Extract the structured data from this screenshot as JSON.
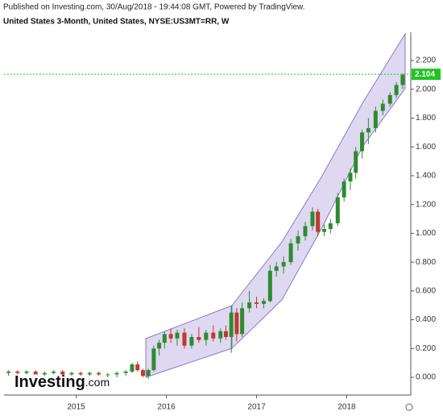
{
  "header": {
    "published": "Published on Investing.com, 30/Aug/2018 - 19:44:08 GMT, Powered by TradingView.",
    "symbol": "United States 3-Month, United States, NYSE:US3MT=RR, W"
  },
  "logo": {
    "brand": "Investing",
    "suffix": ".com"
  },
  "chart_data": {
    "type": "candlestick",
    "up_color": "#2e8b2e",
    "down_color": "#c0392b",
    "x": [
      2014.25,
      2014.35,
      2014.45,
      2014.55,
      2014.65,
      2014.75,
      2014.85,
      2014.95,
      2015.05,
      2015.15,
      2015.25,
      2015.35,
      2015.45,
      2015.55,
      2015.62,
      2015.68,
      2015.74,
      2015.8,
      2015.86,
      2015.92,
      2015.98,
      2016.05,
      2016.12,
      2016.2,
      2016.28,
      2016.36,
      2016.44,
      2016.52,
      2016.6,
      2016.66,
      2016.72,
      2016.78,
      2016.84,
      2016.92,
      2017.0,
      2017.08,
      2017.15,
      2017.22,
      2017.3,
      2017.38,
      2017.46,
      2017.54,
      2017.62,
      2017.68,
      2017.75,
      2017.82,
      2017.9,
      2017.97,
      2018.04,
      2018.1,
      2018.17,
      2018.24,
      2018.32,
      2018.4,
      2018.48,
      2018.55,
      2018.62
    ],
    "open": [
      0.03,
      0.04,
      0.03,
      0.04,
      0.02,
      0.03,
      0.04,
      0.02,
      0.03,
      0.02,
      0.03,
      0.02,
      0.02,
      0.03,
      0.04,
      0.09,
      0.05,
      0.01,
      0.05,
      0.2,
      0.24,
      0.3,
      0.27,
      0.31,
      0.22,
      0.28,
      0.26,
      0.31,
      0.27,
      0.32,
      0.28,
      0.45,
      0.3,
      0.48,
      0.52,
      0.51,
      0.53,
      0.74,
      0.77,
      0.8,
      0.93,
      0.98,
      1.05,
      1.15,
      1.01,
      1.03,
      1.07,
      1.25,
      1.36,
      1.42,
      1.57,
      1.7,
      1.73,
      1.85,
      1.9,
      1.96,
      2.03
    ],
    "high": [
      0.05,
      0.05,
      0.05,
      0.05,
      0.04,
      0.05,
      0.05,
      0.04,
      0.04,
      0.04,
      0.04,
      0.03,
      0.04,
      0.05,
      0.1,
      0.11,
      0.06,
      0.06,
      0.22,
      0.26,
      0.32,
      0.34,
      0.33,
      0.34,
      0.3,
      0.35,
      0.33,
      0.36,
      0.34,
      0.36,
      0.5,
      0.48,
      0.52,
      0.6,
      0.56,
      0.55,
      0.78,
      0.8,
      0.84,
      0.96,
      1.02,
      1.08,
      1.18,
      1.17,
      1.06,
      1.1,
      1.28,
      1.38,
      1.45,
      1.6,
      1.72,
      1.8,
      1.88,
      1.93,
      1.98,
      2.05,
      2.11
    ],
    "low": [
      0.01,
      0.02,
      0.02,
      0.02,
      0.01,
      0.02,
      0.01,
      0.01,
      0.01,
      0.01,
      0.01,
      0.0,
      0.0,
      0.01,
      0.03,
      0.04,
      0.0,
      -0.01,
      0.04,
      0.15,
      0.2,
      0.24,
      0.22,
      0.2,
      0.2,
      0.24,
      0.22,
      0.25,
      0.24,
      0.26,
      0.17,
      0.25,
      0.28,
      0.45,
      0.48,
      0.48,
      0.52,
      0.7,
      0.72,
      0.78,
      0.88,
      0.95,
      1.02,
      0.98,
      0.98,
      1.0,
      1.05,
      1.22,
      1.3,
      1.38,
      1.52,
      1.62,
      1.7,
      1.82,
      1.88,
      1.94,
      2.0
    ],
    "close": [
      0.04,
      0.03,
      0.04,
      0.02,
      0.03,
      0.04,
      0.02,
      0.03,
      0.02,
      0.03,
      0.02,
      0.02,
      0.03,
      0.04,
      0.09,
      0.05,
      0.01,
      0.05,
      0.2,
      0.24,
      0.3,
      0.27,
      0.31,
      0.22,
      0.28,
      0.26,
      0.31,
      0.27,
      0.32,
      0.28,
      0.45,
      0.3,
      0.48,
      0.52,
      0.51,
      0.53,
      0.74,
      0.77,
      0.8,
      0.93,
      0.98,
      1.05,
      1.15,
      1.01,
      1.03,
      1.07,
      1.25,
      1.36,
      1.42,
      1.57,
      1.7,
      1.73,
      1.85,
      1.9,
      1.96,
      2.03,
      2.1
    ],
    "last": {
      "value": 2.104,
      "label": "2.104"
    },
    "last_color": "#22c422",
    "xlim": [
      2014.2,
      2018.71
    ],
    "xticks": [
      2015,
      2016,
      2017,
      2018
    ],
    "ylim": [
      -0.123,
      2.396
    ],
    "yticks": [
      {
        "value": 0,
        "label": "0.000"
      },
      {
        "value": 0.2,
        "label": "0.200"
      },
      {
        "value": 0.4,
        "label": "0.400"
      },
      {
        "value": 0.6,
        "label": "0.600"
      },
      {
        "value": 0.8,
        "label": "0.800"
      },
      {
        "value": 1,
        "label": "1.000"
      },
      {
        "value": 1.2,
        "label": "1.200"
      },
      {
        "value": 1.4,
        "label": "1.400"
      },
      {
        "value": 1.6,
        "label": "1.600"
      },
      {
        "value": 1.8,
        "label": "1.800"
      },
      {
        "value": 2,
        "label": "2.000"
      },
      {
        "value": 2.2,
        "label": "2.200"
      }
    ]
  }
}
